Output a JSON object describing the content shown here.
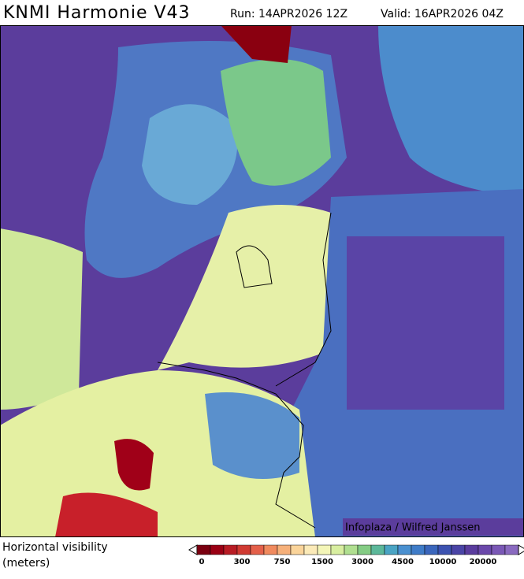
{
  "header": {
    "title": "KNMI Harmonie V43",
    "run": "Run: 14APR2026 12Z",
    "valid": "Valid: 16APR2026 04Z"
  },
  "map": {
    "credit": "Infoplaza / Wilfred Janssen"
  },
  "legend": {
    "label": [
      "Horizontal visibility",
      "(meters)"
    ],
    "ticks": [
      "0",
      "300",
      "750",
      "1500",
      "3000",
      "4500",
      "10000",
      "20000"
    ]
  }
}
